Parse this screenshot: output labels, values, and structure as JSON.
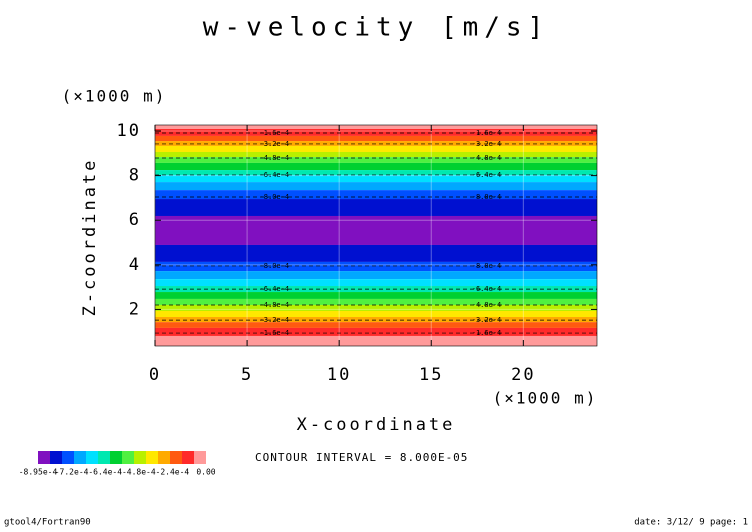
{
  "chart_data": {
    "type": "contour",
    "title": "w-velocity [m/s]",
    "xlabel": "X-coordinate",
    "ylabel": "Z-coordinate",
    "xunit": "(×1000 m)",
    "yunit": "(×1000 m)",
    "xlim": [
      0,
      24
    ],
    "xticks": [
      0,
      5,
      10,
      15,
      20
    ],
    "ylim": [
      0.36,
      10.27
    ],
    "yticks": [
      2,
      4,
      6,
      8,
      10
    ],
    "grid": true,
    "levels": [
      10.27,
      10.09,
      9.78,
      9.55,
      9.33,
      9.06,
      8.83,
      8.57,
      8.25,
      8.03,
      7.71,
      7.35,
      6.95,
      6.19,
      4.89,
      4.13,
      3.72,
      3.36,
      3.05,
      2.78,
      2.47,
      2.2,
      1.93,
      1.66,
      1.43,
      1.17,
      0.81,
      0.36
    ],
    "band_colors": [
      "#ff9a9a",
      "#ff2a2a",
      "#ff5a10",
      "#ffaa00",
      "#ffe800",
      "#b8f000",
      "#50f040",
      "#00d030",
      "#00e8b0",
      "#00e0ff",
      "#00a8ff",
      "#0050ff",
      "#0010d0",
      "#8010c0",
      "#0010d0",
      "#0050ff",
      "#00a8ff",
      "#00e0ff",
      "#00e8b0",
      "#00d030",
      "#50f040",
      "#b8f000",
      "#ffe800",
      "#ffaa00",
      "#ff5a10",
      "#ff2a2a",
      "#ff9a9a"
    ],
    "contours": [
      {
        "value": -0.00016,
        "label": "-1.6e-4",
        "z": [
          9.91,
          0.94
        ]
      },
      {
        "value": -0.00032,
        "label": "-3.2e-4",
        "z": [
          9.42,
          1.52
        ]
      },
      {
        "value": -0.00048,
        "label": "-4.8e-4",
        "z": [
          8.79,
          2.2
        ]
      },
      {
        "value": -0.00064,
        "label": "-6.4e-4",
        "z": [
          8.03,
          2.91
        ]
      },
      {
        "value": -0.0008,
        "label": "-8.0e-4",
        "z": [
          7.04,
          3.95
        ]
      }
    ],
    "colorbar": {
      "colors": [
        "#8010c0",
        "#0010d0",
        "#0050ff",
        "#00a8ff",
        "#00e0ff",
        "#00e8b0",
        "#00d030",
        "#50f040",
        "#b8f000",
        "#ffe800",
        "#ffaa00",
        "#ff5a10",
        "#ff2a2a",
        "#ff9a9a"
      ],
      "labels": [
        "-8.95e-4",
        "-7.2e-4",
        "-6.4e-4",
        "-4.8e-4",
        "-2.4e-4",
        "0.00"
      ]
    },
    "interval_note": "CONTOUR INTERVAL = 8.000E-05",
    "footer_left": "gtool4/Fortran90",
    "footer_right": "date: 3/12/ 9 page: 1"
  }
}
